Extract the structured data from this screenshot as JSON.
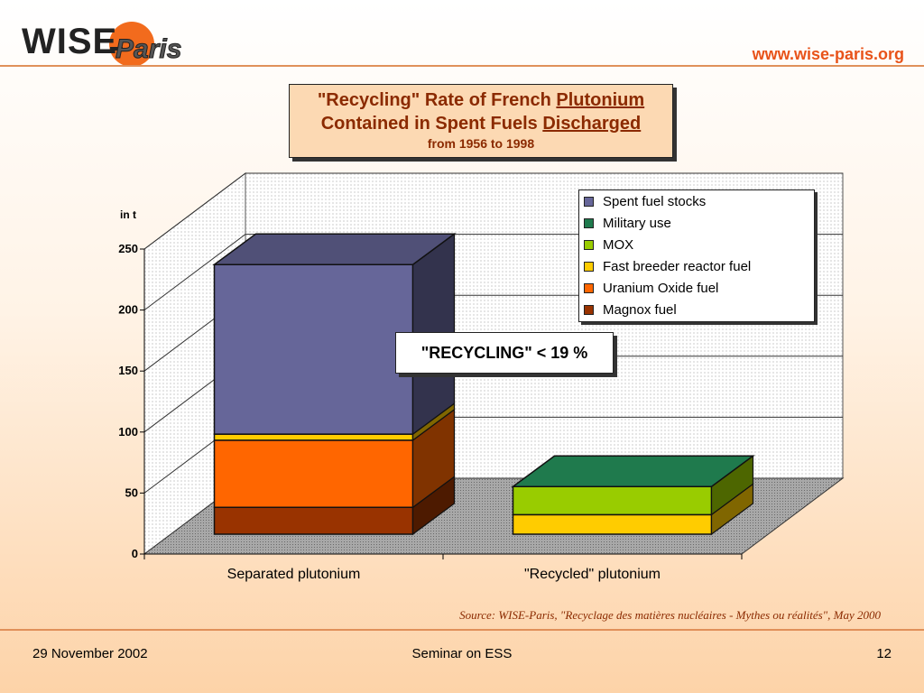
{
  "header": {
    "logo_main": "WISE",
    "logo_sub": "Paris",
    "url": "www.wise-paris.org"
  },
  "title": {
    "line1_a": "\"Recycling\" Rate of French ",
    "line1_b": "Plutonium",
    "line2_a": "Contained in Spent Fuels ",
    "line2_b": "Discharged",
    "subtitle": "from 1956 to 1998"
  },
  "callout": "\"RECYCLING\" < 19 %",
  "source": "Source: WISE-Paris, \"Recyclage des matières nucléaires - Mythes ou réalités\", May 2000",
  "footer": {
    "date": "29 November 2002",
    "center": "Seminar on ESS",
    "page": "12"
  },
  "chart_data": {
    "type": "bar",
    "stacked": true,
    "three_d": true,
    "ylabel": "in t",
    "ylim": [
      0,
      250
    ],
    "yticks": [
      0,
      50,
      100,
      150,
      200,
      250
    ],
    "categories": [
      "Separated plutonium",
      "\"Recycled\" plutonium"
    ],
    "legend_position": "top-right",
    "series": [
      {
        "name": "Magnox fuel",
        "color": "#993300",
        "values": [
          22,
          0
        ]
      },
      {
        "name": "Uranium Oxide fuel",
        "color": "#ff6600",
        "values": [
          55,
          0
        ]
      },
      {
        "name": "Fast breeder reactor fuel",
        "color": "#ffcc00",
        "values": [
          5,
          16
        ]
      },
      {
        "name": "MOX",
        "color": "#99cc00",
        "values": [
          0,
          23
        ]
      },
      {
        "name": "Military use",
        "color": "#1f7a4d",
        "values": [
          0,
          0
        ]
      },
      {
        "name": "Spent fuel stocks",
        "color": "#666699",
        "values": [
          139,
          0
        ]
      }
    ],
    "legend_order": [
      "Spent fuel stocks",
      "Military use",
      "MOX",
      "Fast breeder reactor fuel",
      "Uranium Oxide fuel",
      "Magnox fuel"
    ]
  }
}
